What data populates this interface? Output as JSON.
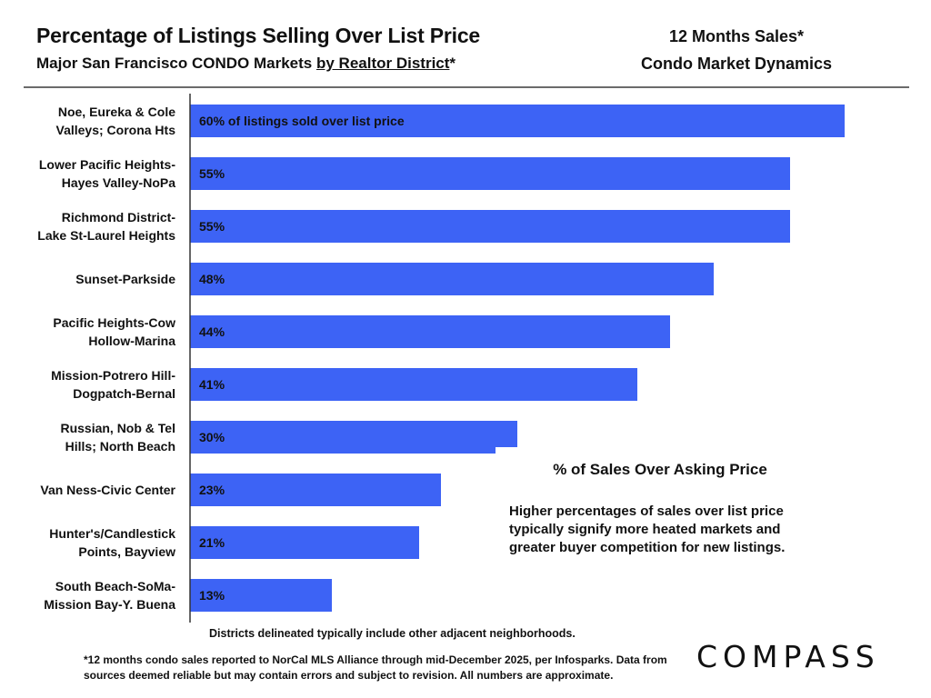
{
  "header": {
    "title": "Percentage of Listings Selling Over List Price",
    "subtitle_part1": "Major San Francisco CONDO Markets ",
    "subtitle_underlined": "by Realtor District",
    "subtitle_part2": "*",
    "side_line1": "12 Months Sales*",
    "side_line2": "Condo Market Dynamics"
  },
  "chart_data": {
    "type": "bar",
    "orientation": "horizontal",
    "title": "Percentage of Listings Selling Over List Price",
    "xlabel": "% of Sales Over Asking Price",
    "ylabel": "",
    "xlim": [
      0,
      62
    ],
    "categories": [
      [
        "Noe, Eureka & Cole",
        "Valleys; Corona Hts"
      ],
      [
        "Lower Pacific Heights-",
        "Hayes Valley-NoPa"
      ],
      [
        "Richmond District-",
        "Lake St-Laurel Heights"
      ],
      [
        "Sunset-Parkside"
      ],
      [
        "Pacific Heights-Cow",
        "Hollow-Marina"
      ],
      [
        "Mission-Potrero Hill-",
        "Dogpatch-Bernal"
      ],
      [
        "Russian, Nob & Tel",
        "Hills; North Beach"
      ],
      [
        "Van Ness-Civic Center"
      ],
      [
        "Hunter's/Candlestick",
        "Points, Bayview"
      ],
      [
        "South Beach-SoMa-",
        "Mission Bay-Y. Buena"
      ]
    ],
    "values": [
      60,
      55,
      55,
      48,
      44,
      41,
      30,
      23,
      21,
      13
    ],
    "data_labels": [
      "60%  of listings sold over list price",
      "55%",
      "55%",
      "48%",
      "44%",
      "41%",
      "30%",
      "23%",
      "21%",
      "13%"
    ],
    "bar_color": "#3d63f5",
    "label_color": "#111111"
  },
  "legend": {
    "title": "% of Sales Over Asking Price",
    "text": "Higher percentages of sales over list price typically signify more heated markets and greater buyer competition for new listings."
  },
  "footer": {
    "note": "Districts delineated typically include other adjacent neighborhoods.",
    "footnote": "*12 months condo sales reported to NorCal MLS Alliance through mid-December 2025, per Infosparks. Data from sources deemed reliable but may contain errors and subject to revision. All numbers are approximate.",
    "logo": "COMPASS"
  }
}
